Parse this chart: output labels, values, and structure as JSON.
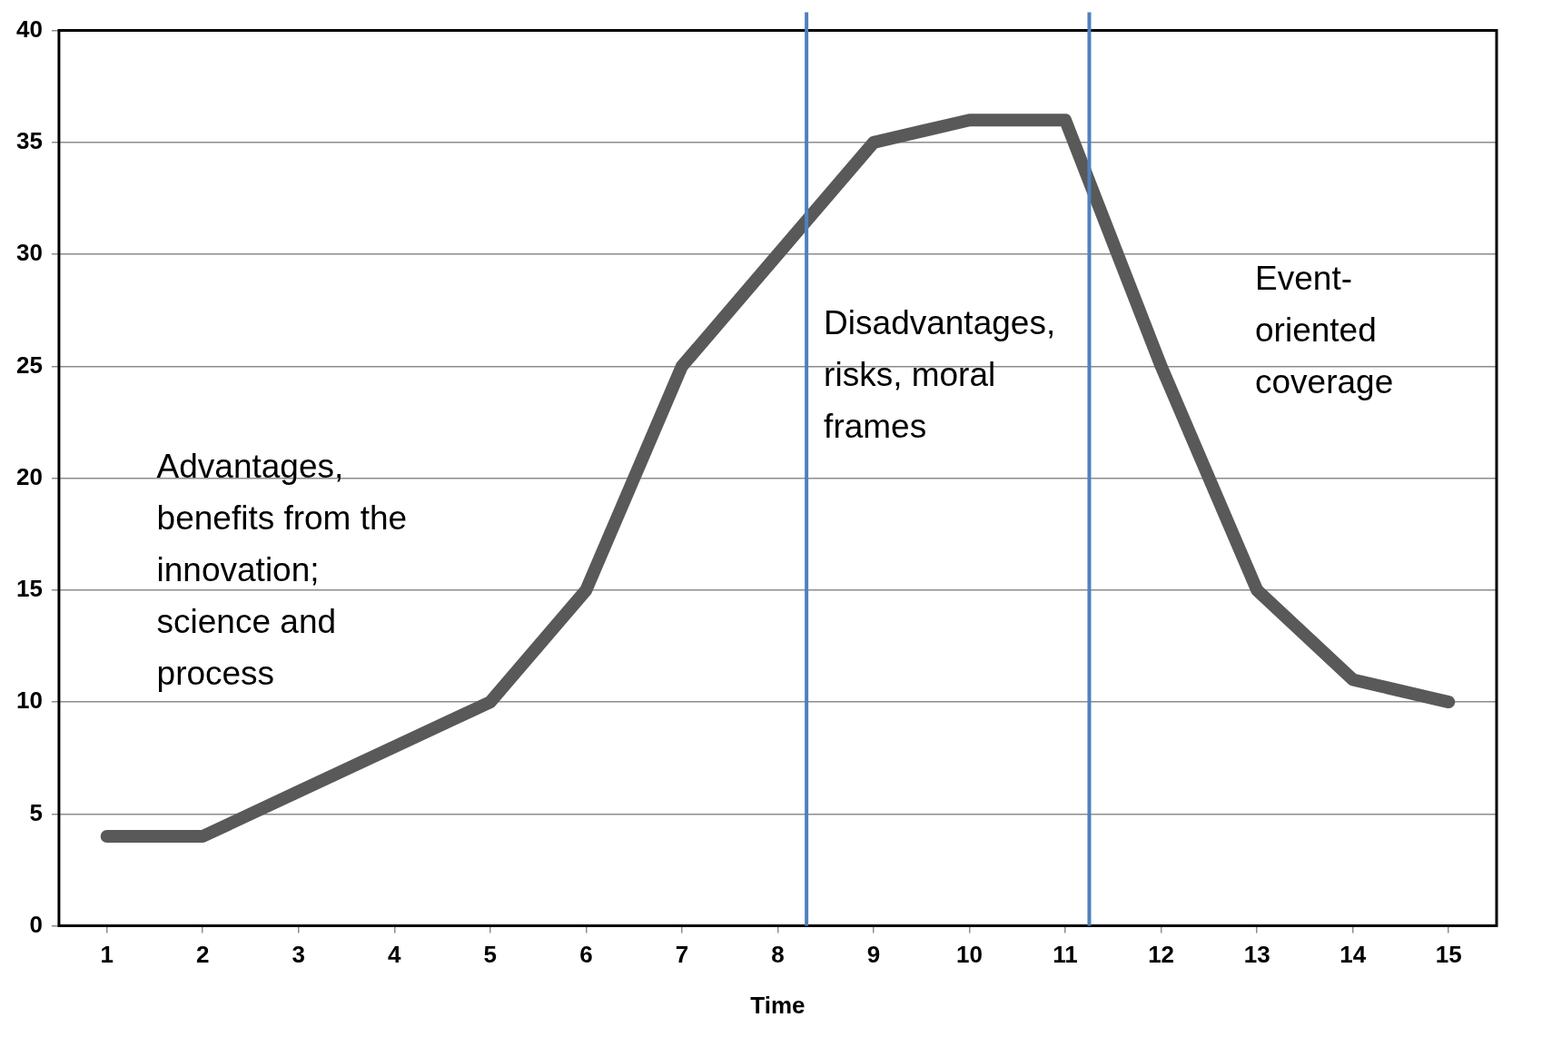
{
  "chart_data": {
    "type": "line",
    "xlabel": "Time",
    "x": [
      1,
      2,
      3,
      4,
      5,
      6,
      7,
      8,
      9,
      10,
      11,
      12,
      13,
      14,
      15
    ],
    "series": [
      {
        "color": "#595959",
        "values": [
          4,
          4,
          6,
          8,
          10,
          15,
          25,
          30,
          35,
          36,
          36,
          25,
          15,
          11,
          10
        ]
      }
    ],
    "xlim": [
      0.5,
      15.5
    ],
    "xticks": [
      1,
      2,
      3,
      4,
      5,
      6,
      7,
      8,
      9,
      10,
      11,
      12,
      13,
      14,
      15
    ],
    "ylim": [
      0,
      40
    ],
    "yticks": [
      0,
      5,
      10,
      15,
      20,
      25,
      30,
      35,
      40
    ],
    "grid": "y",
    "legend": false,
    "marker": "none",
    "line_style": "solid",
    "ref_lines": [
      {
        "axis": "x",
        "value": 8.3,
        "color": "#4f81bd"
      },
      {
        "axis": "x",
        "value": 11.25,
        "color": "#4f81bd"
      }
    ],
    "annotations": [
      "Advantages, benefits from the innovation; science and process",
      "Disadvantages, risks, moral frames",
      "Event-oriented coverage"
    ]
  }
}
